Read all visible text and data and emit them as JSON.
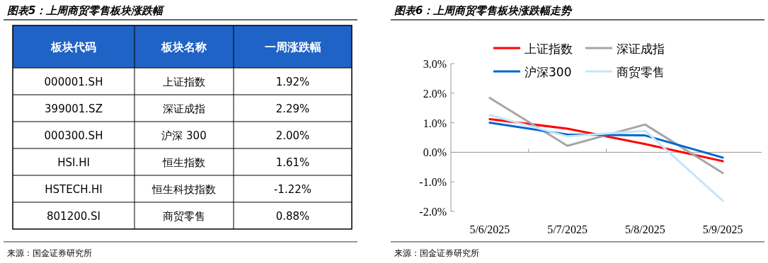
{
  "chart_data": [
    {
      "type": "other",
      "title": "图表5：上周商贸零售板块涨跌幅",
      "annotations": [
        "板块代码",
        "板块名称",
        "一周涨跌幅",
        "000001.SH",
        "上证指数",
        "1.92%",
        "399001.SZ",
        "深证成指",
        "2.29%",
        "000300.SH",
        "沪深 300",
        "2.00%",
        "HSI.HI",
        "恒生指数",
        "1.61%",
        "HSTECH.HI",
        "恒生科技指数",
        "-1.22%",
        "801200.SI",
        "商贸零售",
        "0.88%",
        "来源：国金证券研究所"
      ]
    },
    {
      "type": "line",
      "title": "图表6：上周商贸零售板块涨跌幅走势",
      "categories": [
        "5/6/2025",
        "5/7/2025",
        "5/8/2025",
        "5/9/2025"
      ],
      "series": [
        {
          "name": "上证指数",
          "color": "#ff0000",
          "values": [
            1.12,
            0.8,
            0.28,
            -0.3
          ]
        },
        {
          "name": "深证成指",
          "color": "#a6a6a6",
          "values": [
            1.84,
            0.22,
            0.94,
            -0.7
          ]
        },
        {
          "name": "沪深300",
          "color": "#0066cc",
          "values": [
            1.0,
            0.6,
            0.57,
            -0.18
          ]
        },
        {
          "name": "商贸零售",
          "color": "#c5e6fa",
          "values": [
            1.26,
            0.54,
            0.73,
            -1.64
          ]
        }
      ],
      "ylim": [
        -2,
        3
      ],
      "yticks": [
        {
          "value": -2,
          "label": "-2.0%"
        },
        {
          "value": -1,
          "label": "-1.0%"
        },
        {
          "value": 0,
          "label": "0.0%"
        },
        {
          "value": 1,
          "label": "1.0%"
        },
        {
          "value": 2,
          "label": "2.0%"
        },
        {
          "value": 3,
          "label": "3.0%"
        }
      ],
      "legend": "top",
      "marker": "none",
      "line_style": "solid",
      "annotations": [
        "来源：国金证券研究所"
      ]
    }
  ]
}
